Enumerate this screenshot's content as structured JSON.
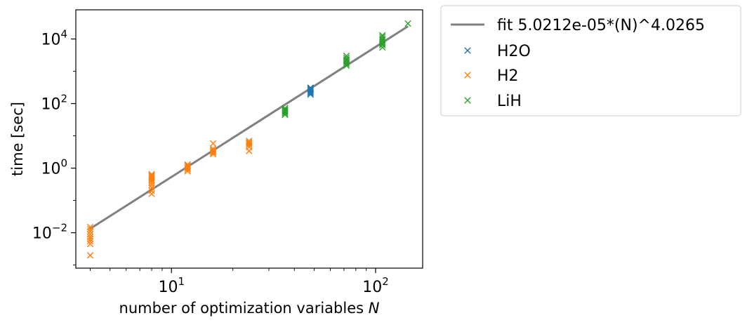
{
  "chart_data": {
    "type": "scatter",
    "xscale": "log",
    "yscale": "log",
    "xlim": [
      3.4,
      170
    ],
    "ylim": [
      0.0008,
      80000
    ],
    "xlabel": "number of optimization variables",
    "xlabel_var": "N",
    "ylabel": "time [sec]",
    "grid": false,
    "legend_position": "outside upper right",
    "x_major_ticks": [
      {
        "value": 10,
        "base": "10",
        "exp": "1"
      },
      {
        "value": 100,
        "base": "10",
        "exp": "2"
      }
    ],
    "y_major_ticks": [
      {
        "value": 0.01,
        "base": "10",
        "exp": "−2"
      },
      {
        "value": 1,
        "base": "10",
        "exp": "0"
      },
      {
        "value": 100,
        "base": "10",
        "exp": "2"
      },
      {
        "value": 10000,
        "base": "10",
        "exp": "4"
      }
    ],
    "fit": {
      "name": "fit 5.0212e-05*(N)^4.0265",
      "a": 5.0212e-05,
      "b": 4.0265,
      "x_range": [
        4,
        144
      ],
      "color": "#808080"
    },
    "series": [
      {
        "name": "H2O",
        "color": "#1f77b4",
        "marker": "x",
        "points": [
          [
            48,
            190
          ],
          [
            48,
            210
          ],
          [
            48,
            230
          ],
          [
            48,
            250
          ],
          [
            48,
            270
          ],
          [
            48,
            290
          ],
          [
            48,
            310
          ]
        ]
      },
      {
        "name": "H2",
        "color": "#ff7f0e",
        "marker": "x",
        "points": [
          [
            4,
            0.002
          ],
          [
            4,
            0.0045
          ],
          [
            4,
            0.0055
          ],
          [
            4,
            0.0065
          ],
          [
            4,
            0.0075
          ],
          [
            4,
            0.009
          ],
          [
            4,
            0.011
          ],
          [
            4,
            0.013
          ],
          [
            4,
            0.015
          ],
          [
            8,
            0.16
          ],
          [
            8,
            0.2
          ],
          [
            8,
            0.25
          ],
          [
            8,
            0.3
          ],
          [
            8,
            0.35
          ],
          [
            8,
            0.4
          ],
          [
            8,
            0.45
          ],
          [
            8,
            0.5
          ],
          [
            8,
            0.55
          ],
          [
            8,
            0.6
          ],
          [
            8,
            0.65
          ],
          [
            12,
            0.8
          ],
          [
            12,
            0.9
          ],
          [
            12,
            1.0
          ],
          [
            12,
            1.1
          ],
          [
            12,
            1.2
          ],
          [
            12,
            1.3
          ],
          [
            16,
            2.7
          ],
          [
            16,
            3.0
          ],
          [
            16,
            3.3
          ],
          [
            16,
            3.6
          ],
          [
            16,
            4.0
          ],
          [
            16,
            5.8
          ],
          [
            24,
            3.4
          ],
          [
            24,
            4.5
          ],
          [
            24,
            5.2
          ],
          [
            24,
            5.8
          ],
          [
            24,
            6.3
          ],
          [
            24,
            7.0
          ]
        ]
      },
      {
        "name": "LiH",
        "color": "#2ca02c",
        "marker": "x",
        "points": [
          [
            36,
            45
          ],
          [
            36,
            50
          ],
          [
            36,
            55
          ],
          [
            36,
            60
          ],
          [
            36,
            65
          ],
          [
            36,
            72
          ],
          [
            72,
            1500
          ],
          [
            72,
            1700
          ],
          [
            72,
            1900
          ],
          [
            72,
            2100
          ],
          [
            72,
            2300
          ],
          [
            72,
            2600
          ],
          [
            72,
            3000
          ],
          [
            108,
            5500
          ],
          [
            108,
            6500
          ],
          [
            108,
            7200
          ],
          [
            108,
            8000
          ],
          [
            108,
            9000
          ],
          [
            108,
            10000
          ],
          [
            108,
            11500
          ],
          [
            108,
            13000
          ],
          [
            144,
            30000
          ]
        ]
      }
    ]
  }
}
